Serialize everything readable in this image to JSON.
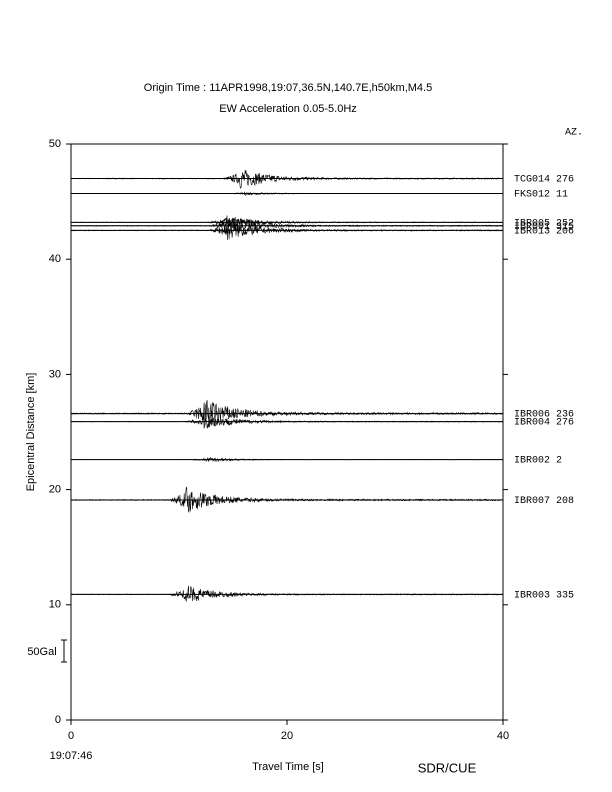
{
  "chart_data": {
    "type": "seismogram",
    "title": "Origin Time : 11APR1998,19:07,36.5N,140.7E,h50km,M4.5",
    "subtitle": "EW Acceleration 0.05-5.0Hz",
    "x_label": "Travel Time [s]",
    "y_label": "Epicentral Distance [km]",
    "start_time": "19:07:46",
    "azimuth_header": "AZ.",
    "scale_label": "50Gal",
    "credit": "SDR/CUE",
    "xlim": [
      0,
      40
    ],
    "ylim": [
      0,
      50
    ],
    "xticks": [
      0,
      20,
      40
    ],
    "yticks": [
      0,
      10,
      20,
      30,
      40,
      50
    ],
    "series": [
      {
        "name": "TCG014",
        "azimuth": 276,
        "distance": 47.0,
        "arrival": 15.6,
        "amplitude": 0.9
      },
      {
        "name": "FKS012",
        "azimuth": 11,
        "distance": 45.7,
        "arrival": 16.0,
        "amplitude": 0.15
      },
      {
        "name": "IBR005",
        "azimuth": 252,
        "distance": 43.2,
        "arrival": 14.3,
        "amplitude": 0.6
      },
      {
        "name": "IBR001",
        "azimuth": 315,
        "distance": 42.9,
        "arrival": 14.3,
        "amplitude": 0.8
      },
      {
        "name": "IBR013",
        "azimuth": 206,
        "distance": 42.5,
        "arrival": 14.3,
        "amplitude": 0.9
      },
      {
        "name": "IBR006",
        "azimuth": 236,
        "distance": 26.6,
        "arrival": 12.2,
        "amplitude": 1.4
      },
      {
        "name": "IBR004",
        "azimuth": 276,
        "distance": 25.9,
        "arrival": 12.2,
        "amplitude": 0.7
      },
      {
        "name": "IBR002",
        "azimuth": 2,
        "distance": 22.6,
        "arrival": 12.5,
        "amplitude": 0.2
      },
      {
        "name": "IBR007",
        "azimuth": 208,
        "distance": 19.1,
        "arrival": 10.6,
        "amplitude": 1.2
      },
      {
        "name": "IBR003",
        "azimuth": 335,
        "distance": 10.9,
        "arrival": 10.6,
        "amplitude": 0.8
      }
    ]
  }
}
